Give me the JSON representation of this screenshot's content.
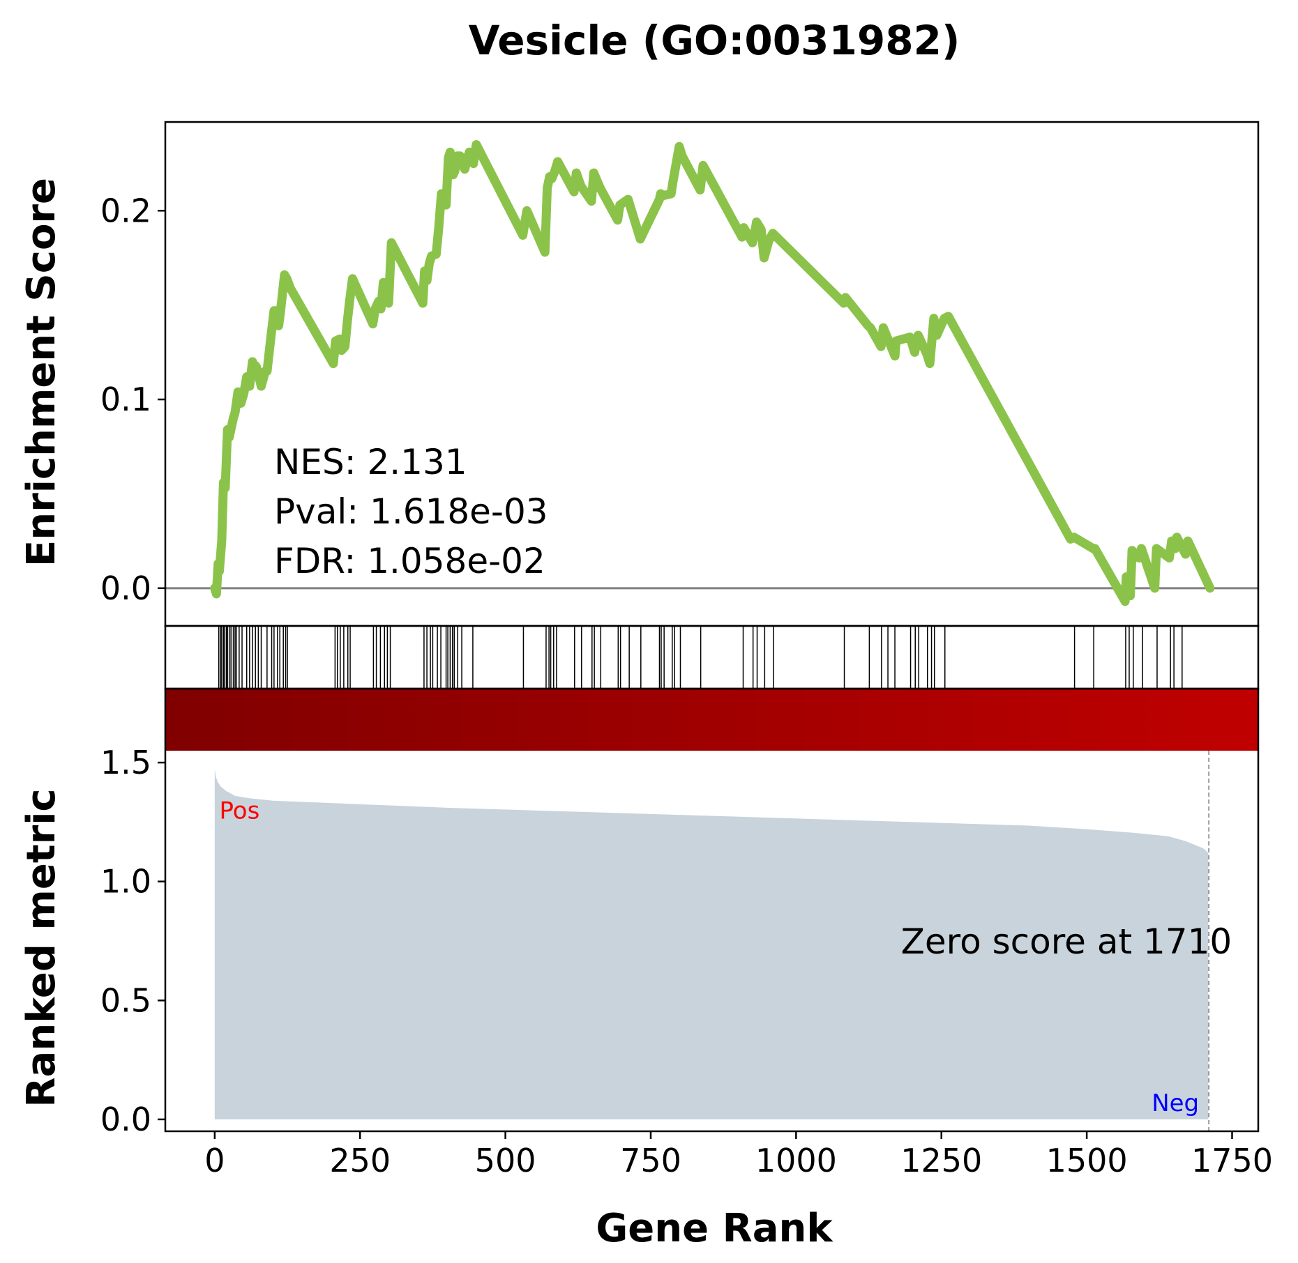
{
  "chart_data": {
    "type": "line",
    "title": "Vesicle (GO:0031982)",
    "xlabel": "Gene Rank",
    "xlim": [
      -85,
      1795
    ],
    "xticks": [
      0,
      250,
      500,
      750,
      1000,
      1250,
      1500,
      1750
    ],
    "panels": {
      "enrichment": {
        "ylabel": "Enrichment Score",
        "ylim": [
          -0.02,
          0.247
        ],
        "yticks": [
          0.0,
          0.1,
          0.2
        ],
        "ytick_labels": [
          "0.0",
          "0.1",
          "0.2"
        ],
        "line_color": "#8bc34a",
        "baseline": 0.0,
        "series": [
          {
            "x": [
              0,
              3,
              6,
              8,
              12,
              15,
              18,
              22,
              25,
              32,
              35,
              40,
              45,
              50,
              55,
              60,
              65,
              68,
              70,
              72,
              80,
              87,
              90,
              97,
              102,
              107,
              110,
              113,
              120,
              124,
              130,
              204,
              208,
              215,
              218,
              224,
              228,
              232,
              237,
              272,
              276,
              282,
              286,
              290,
              296,
              299,
              304,
              358,
              361,
              365,
              369,
              373,
              381,
              385,
              390,
              398,
              402,
              405,
              410,
              413,
              417,
              422,
              430,
              438,
              445,
              450,
              530,
              532,
              537,
              568,
              572,
              576,
              580,
              585,
              590,
              618,
              622,
              630,
              648,
              652,
              663,
              693,
              697,
              711,
              732,
              765,
              767,
              772,
              785,
              788,
              799,
              804,
              835,
              840,
              907,
              910,
              925,
              928,
              932,
              940,
              945,
              953,
              960,
              1082,
              1085,
              1124,
              1128,
              1146,
              1150,
              1170,
              1172,
              1196,
              1204,
              1210,
              1225,
              1230,
              1237,
              1242,
              1255,
              1262,
              1472,
              1478,
              1511,
              1514,
              1566,
              1568,
              1575,
              1578,
              1590,
              1594,
              1617,
              1620,
              1642,
              1646,
              1652,
              1655,
              1670,
              1674,
              1712
            ],
            "y": [
              0.0,
              -0.003,
              0.013,
              0.009,
              0.025,
              0.056,
              0.053,
              0.084,
              0.08,
              0.09,
              0.093,
              0.104,
              0.098,
              0.103,
              0.112,
              0.107,
              0.12,
              0.116,
              0.118,
              0.117,
              0.107,
              0.115,
              0.115,
              0.134,
              0.147,
              0.147,
              0.139,
              0.146,
              0.166,
              0.164,
              0.159,
              0.119,
              0.131,
              0.132,
              0.126,
              0.128,
              0.141,
              0.152,
              0.164,
              0.14,
              0.148,
              0.152,
              0.148,
              0.162,
              0.16,
              0.151,
              0.183,
              0.151,
              0.168,
              0.163,
              0.172,
              0.176,
              0.177,
              0.19,
              0.209,
              0.203,
              0.228,
              0.231,
              0.219,
              0.221,
              0.229,
              0.229,
              0.222,
              0.231,
              0.225,
              0.235,
              0.187,
              0.191,
              0.2,
              0.178,
              0.212,
              0.218,
              0.217,
              0.221,
              0.226,
              0.21,
              0.22,
              0.213,
              0.205,
              0.22,
              0.212,
              0.195,
              0.203,
              0.206,
              0.185,
              0.206,
              0.209,
              0.208,
              0.209,
              0.215,
              0.234,
              0.229,
              0.211,
              0.224,
              0.186,
              0.191,
              0.183,
              0.187,
              0.194,
              0.19,
              0.175,
              0.184,
              0.188,
              0.151,
              0.154,
              0.139,
              0.138,
              0.128,
              0.138,
              0.123,
              0.131,
              0.133,
              0.125,
              0.134,
              0.124,
              0.119,
              0.143,
              0.134,
              0.143,
              0.144,
              0.026,
              0.027,
              0.021,
              0.021,
              -0.007,
              0.006,
              -0.004,
              0.02,
              0.016,
              0.021,
              0.0,
              0.021,
              0.016,
              0.025,
              0.021,
              0.027,
              0.018,
              0.025,
              0.0
            ]
          }
        ],
        "stats_text": [
          "NES: 2.131",
          "Pval: 1.618e-03",
          "FDR: 1.058e-02"
        ]
      },
      "hits": {
        "positions": [
          7,
          10,
          12,
          15,
          17,
          20,
          22,
          25,
          28,
          32,
          35,
          37,
          42,
          47,
          55,
          60,
          65,
          70,
          75,
          80,
          90,
          98,
          102,
          108,
          112,
          118,
          122,
          125,
          207,
          211,
          216,
          222,
          229,
          233,
          273,
          278,
          285,
          292,
          297,
          302,
          360,
          365,
          371,
          375,
          383,
          389,
          398,
          401,
          405,
          409,
          412,
          418,
          425,
          444,
          531,
          570,
          575,
          578,
          583,
          588,
          619,
          631,
          649,
          653,
          664,
          694,
          698,
          713,
          733,
          765,
          768,
          773,
          787,
          791,
          801,
          836,
          909,
          926,
          933,
          946,
          961,
          1083,
          1126,
          1147,
          1158,
          1170,
          1197,
          1205,
          1211,
          1226,
          1233,
          1238,
          1256,
          1479,
          1512,
          1567,
          1573,
          1580,
          1596,
          1621,
          1644,
          1650,
          1664
        ]
      },
      "heatmap": {
        "color_start": "#800000",
        "color_end": "#c00000"
      },
      "ranked": {
        "ylabel": "Ranked metric",
        "ylim": [
          -0.05,
          1.55
        ],
        "yticks": [
          0.0,
          0.5,
          1.0,
          1.5
        ],
        "ytick_labels": [
          "0.0",
          "0.5",
          "1.0",
          "1.5"
        ],
        "fill_color": "#c8d3dc",
        "x": [
          0,
          2,
          5,
          10,
          20,
          35,
          60,
          100,
          200,
          400,
          600,
          800,
          1000,
          1200,
          1400,
          1500,
          1580,
          1640,
          1670,
          1690,
          1700,
          1705,
          1709
        ],
        "y": [
          1.475,
          1.44,
          1.42,
          1.4,
          1.38,
          1.36,
          1.35,
          1.34,
          1.33,
          1.31,
          1.295,
          1.28,
          1.265,
          1.25,
          1.235,
          1.22,
          1.205,
          1.19,
          1.17,
          1.15,
          1.14,
          1.13,
          1.12
        ],
        "zero_score_rank": 1710,
        "zero_score_text": "Zero score at 1710",
        "pos_text": "Pos",
        "neg_text": "Neg",
        "pos_color": "#ff0000",
        "neg_color": "#0000ff"
      }
    },
    "xtick_labels": [
      "0",
      "250",
      "500",
      "750",
      "1000",
      "1250",
      "1500",
      "1750"
    ]
  }
}
